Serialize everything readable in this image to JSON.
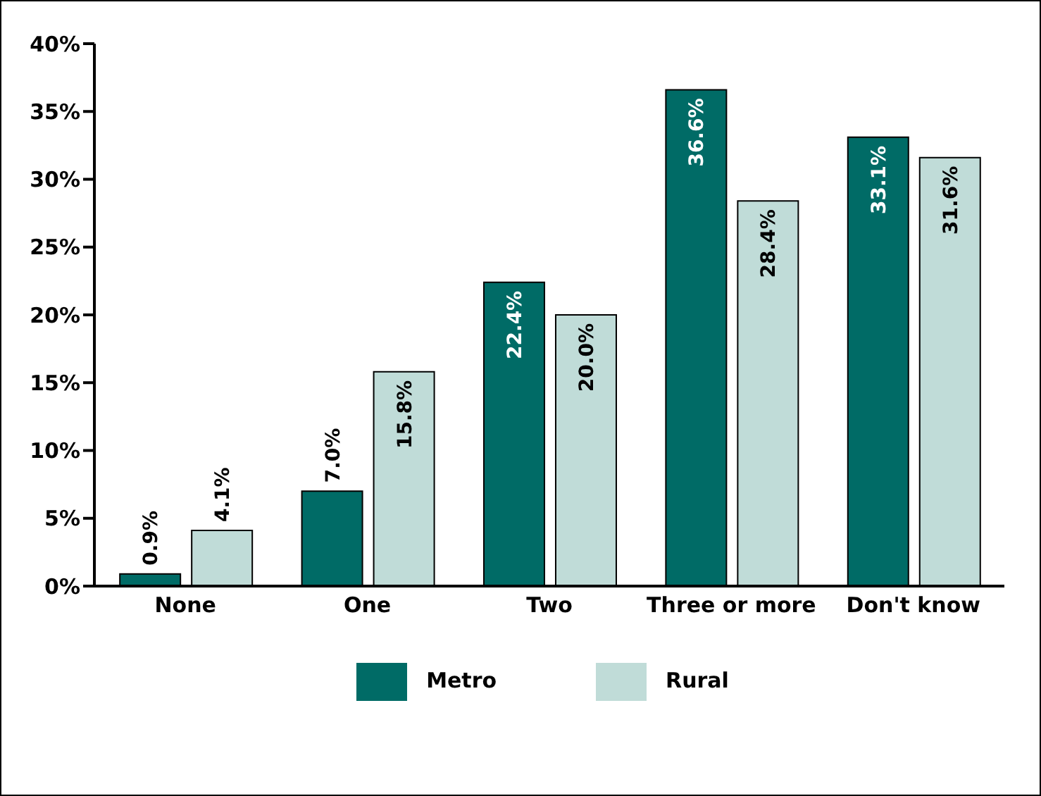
{
  "chart_data": {
    "type": "bar",
    "categories": [
      "None",
      "One",
      "Two",
      "Three or more",
      "Don't know"
    ],
    "series": [
      {
        "name": "Metro",
        "color": "#006b66",
        "values": [
          0.9,
          7.0,
          22.4,
          36.6,
          33.1
        ],
        "value_labels": [
          "0.9%",
          "7.0%",
          "22.4%",
          "36.6%",
          "33.1%"
        ]
      },
      {
        "name": "Rural",
        "color": "#c0dcd8",
        "values": [
          4.1,
          15.8,
          20.0,
          28.4,
          31.6
        ],
        "value_labels": [
          "4.1%",
          "15.8%",
          "20.0%",
          "28.4%",
          "31.6%"
        ]
      }
    ],
    "ylim": [
      0,
      40
    ],
    "yticks": [
      {
        "value": 0,
        "label": "0%"
      },
      {
        "value": 5,
        "label": "5%"
      },
      {
        "value": 10,
        "label": "10%"
      },
      {
        "value": 15,
        "label": "15%"
      },
      {
        "value": 20,
        "label": "20%"
      },
      {
        "value": 25,
        "label": "25%"
      },
      {
        "value": 30,
        "label": "30%"
      },
      {
        "value": 35,
        "label": "35%"
      },
      {
        "value": 40,
        "label": "40%"
      }
    ],
    "grid": false,
    "legend": "bottom"
  }
}
